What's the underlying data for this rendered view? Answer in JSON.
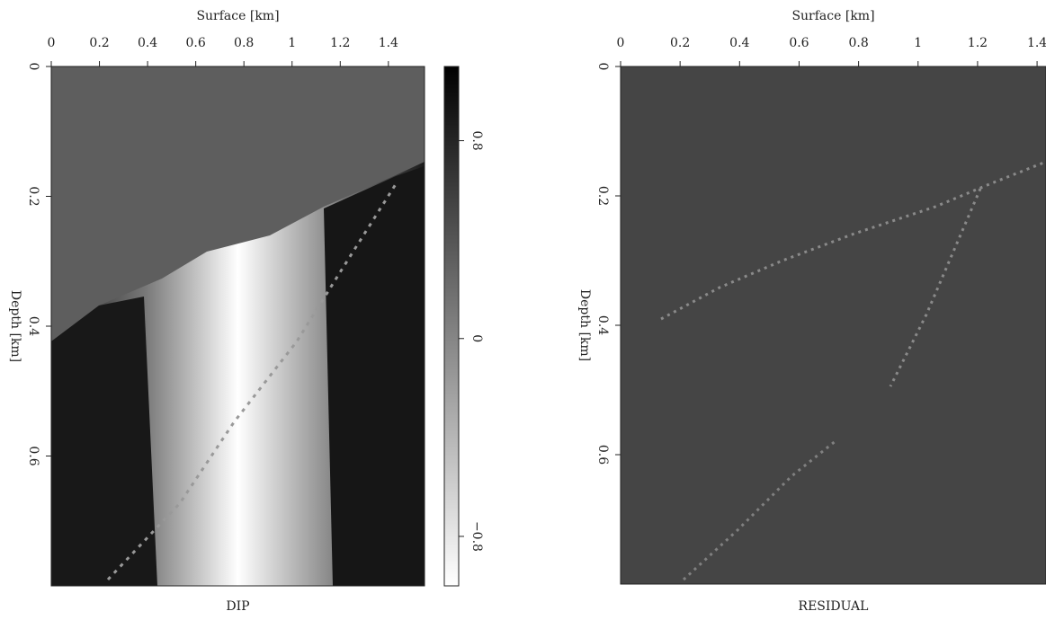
{
  "chart_data": [
    {
      "type": "image",
      "title": "DIP",
      "x_label": "Surface [km]",
      "y_label": "Depth [km]",
      "xlim": [
        0,
        1.55
      ],
      "xticks": [
        0,
        0.2,
        0.4,
        0.6,
        0.8,
        1,
        1.2,
        1.4
      ],
      "ylim": [
        0,
        0.8
      ],
      "yticks": [
        0,
        0.2,
        0.4,
        0.6
      ],
      "y_inverted": true,
      "colorbar": {
        "lim": [
          -1.0,
          1.1
        ],
        "ticks": [
          0.8,
          0,
          {
            "value": -0.8,
            "label": "−0.8"
          }
        ]
      }
    },
    {
      "type": "image",
      "title": "RESIDUAL",
      "x_label": "Surface [km]",
      "y_label": "Depth [km]",
      "xlim": [
        0,
        1.43
      ],
      "xticks": [
        0,
        0.2,
        0.4,
        0.6,
        0.8,
        1,
        1.2,
        1.4
      ],
      "ylim": [
        0,
        0.8
      ],
      "yticks": [
        0,
        0.2,
        0.4,
        0.6
      ],
      "y_inverted": true
    }
  ]
}
